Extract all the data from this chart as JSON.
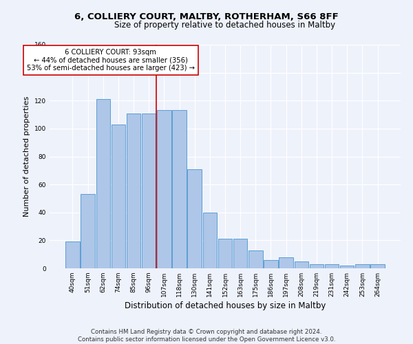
{
  "title": "6, COLLIERY COURT, MALTBY, ROTHERHAM, S66 8FF",
  "subtitle": "Size of property relative to detached houses in Maltby",
  "xlabel": "Distribution of detached houses by size in Maltby",
  "ylabel": "Number of detached properties",
  "categories": [
    "40sqm",
    "51sqm",
    "62sqm",
    "74sqm",
    "85sqm",
    "96sqm",
    "107sqm",
    "118sqm",
    "130sqm",
    "141sqm",
    "152sqm",
    "163sqm",
    "175sqm",
    "186sqm",
    "197sqm",
    "208sqm",
    "219sqm",
    "231sqm",
    "242sqm",
    "253sqm",
    "264sqm"
  ],
  "values": [
    19,
    53,
    121,
    103,
    111,
    111,
    113,
    113,
    71,
    40,
    21,
    21,
    13,
    6,
    8,
    5,
    3,
    3,
    2,
    3,
    3
  ],
  "bar_color": "#aec6e8",
  "bar_edge_color": "#5a9fd4",
  "property_bin_index": 5,
  "annotation_title": "6 COLLIERY COURT: 93sqm",
  "annotation_line1": "← 44% of detached houses are smaller (356)",
  "annotation_line2": "53% of semi-detached houses are larger (423) →",
  "vline_color": "#cc0000",
  "annotation_box_color": "#ffffff",
  "annotation_box_edge": "#cc0000",
  "footer_line1": "Contains HM Land Registry data © Crown copyright and database right 2024.",
  "footer_line2": "Contains public sector information licensed under the Open Government Licence v3.0.",
  "ylim": [
    0,
    160
  ],
  "background_color": "#eef2fb",
  "grid_color": "#ffffff",
  "title_fontsize": 9.5,
  "subtitle_fontsize": 8.5,
  "ylabel_fontsize": 8,
  "xlabel_fontsize": 8.5,
  "tick_fontsize": 6.5,
  "annotation_fontsize": 7.2,
  "footer_fontsize": 6.2
}
